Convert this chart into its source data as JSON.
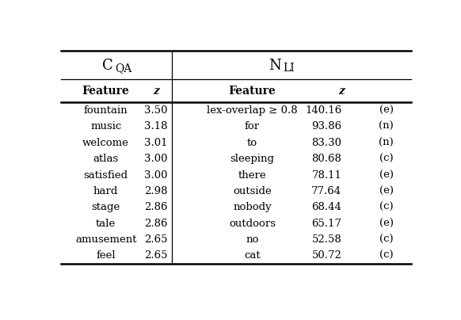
{
  "cqa_features": [
    "fountain",
    "music",
    "welcome",
    "atlas",
    "satisfied",
    "hard",
    "stage",
    "tale",
    "amusement",
    "feel"
  ],
  "cqa_z": [
    "3.50",
    "3.18",
    "3.01",
    "3.00",
    "3.00",
    "2.98",
    "2.86",
    "2.86",
    "2.65",
    "2.65"
  ],
  "nli_features": [
    "lex-overlap ≥ 0.8",
    "for",
    "to",
    "sleeping",
    "there",
    "outside",
    "nobody",
    "outdoors",
    "no",
    "cat"
  ],
  "nli_z": [
    "140.16",
    "93.86",
    "83.30",
    "80.68",
    "78.11",
    "77.64",
    "68.44",
    "65.17",
    "52.58",
    "50.72"
  ],
  "nli_labels": [
    "(e)",
    "(n)",
    "(n)",
    "(c)",
    "(e)",
    "(e)",
    "(c)",
    "(e)",
    "(c)",
    "(c)"
  ],
  "bg_color": "#ffffff",
  "text_color": "#000000",
  "font_size": 9.5,
  "title_font_size": 13,
  "title_sub_font_size": 10,
  "header_font_size": 10
}
